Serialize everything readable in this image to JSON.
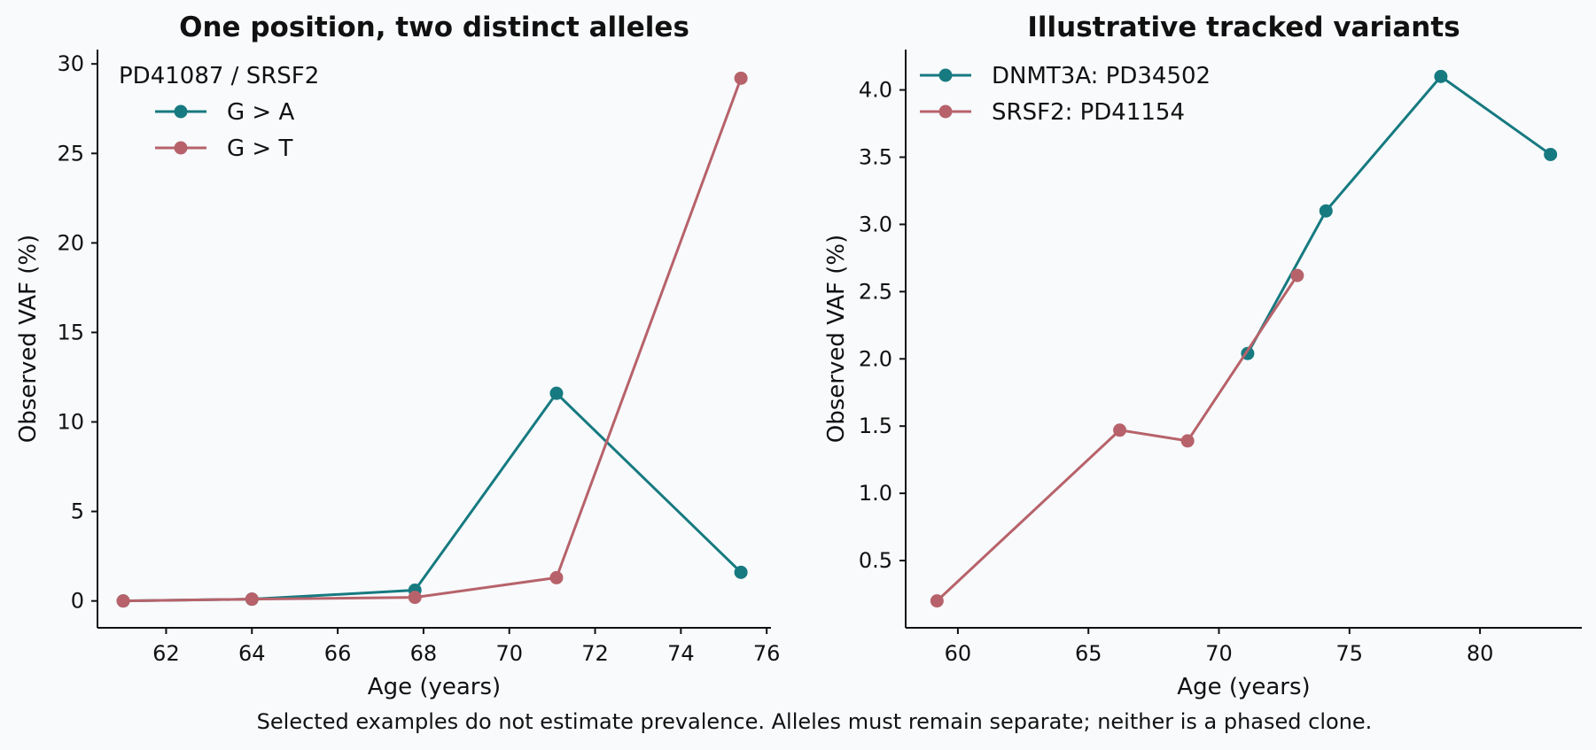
{
  "footer": "Selected examples do not estimate prevalence. Alleles must remain separate; neither is a phased clone.",
  "chart_data": [
    {
      "type": "line",
      "title": "One position, two distinct alleles",
      "xlabel": "Age (years)",
      "ylabel": "Observed VAF (%)",
      "xlim": [
        60.4,
        76.1
      ],
      "ylim": [
        -1.5,
        30.8
      ],
      "xticks": [
        62,
        64,
        66,
        68,
        70,
        72,
        74,
        76
      ],
      "yticks": [
        0,
        5,
        10,
        15,
        20,
        25,
        30
      ],
      "grid": false,
      "legend_position": "top-left",
      "legend_title": "PD41087 / SRSF2",
      "series": [
        {
          "name": "G > A",
          "color": "#167a80",
          "x": [
            61.0,
            64.0,
            67.8,
            71.1,
            75.4
          ],
          "y": [
            0.0,
            0.1,
            0.6,
            11.6,
            1.6
          ]
        },
        {
          "name": "G > T",
          "color": "#b7626a",
          "x": [
            61.0,
            64.0,
            67.8,
            71.1,
            75.4
          ],
          "y": [
            0.0,
            0.1,
            0.2,
            1.3,
            29.2
          ]
        }
      ]
    },
    {
      "type": "line",
      "title": "Illustrative tracked variants",
      "xlabel": "Age (years)",
      "ylabel": "Observed VAF (%)",
      "xlim": [
        58.0,
        83.9
      ],
      "ylim": [
        0.0,
        4.3
      ],
      "xticks": [
        60,
        65,
        70,
        75,
        80
      ],
      "yticks": [
        0.5,
        1.0,
        1.5,
        2.0,
        2.5,
        3.0,
        3.5,
        4.0
      ],
      "grid": false,
      "legend_position": "top-left",
      "series": [
        {
          "name": "DNMT3A: PD34502",
          "color": "#167a80",
          "x": [
            71.1,
            74.1,
            78.5,
            82.7
          ],
          "y": [
            2.04,
            3.1,
            4.1,
            3.52
          ]
        },
        {
          "name": "SRSF2: PD41154",
          "color": "#b7626a",
          "x": [
            59.2,
            66.2,
            68.8,
            73.0
          ],
          "y": [
            0.2,
            1.47,
            1.39,
            2.62
          ]
        }
      ]
    }
  ]
}
